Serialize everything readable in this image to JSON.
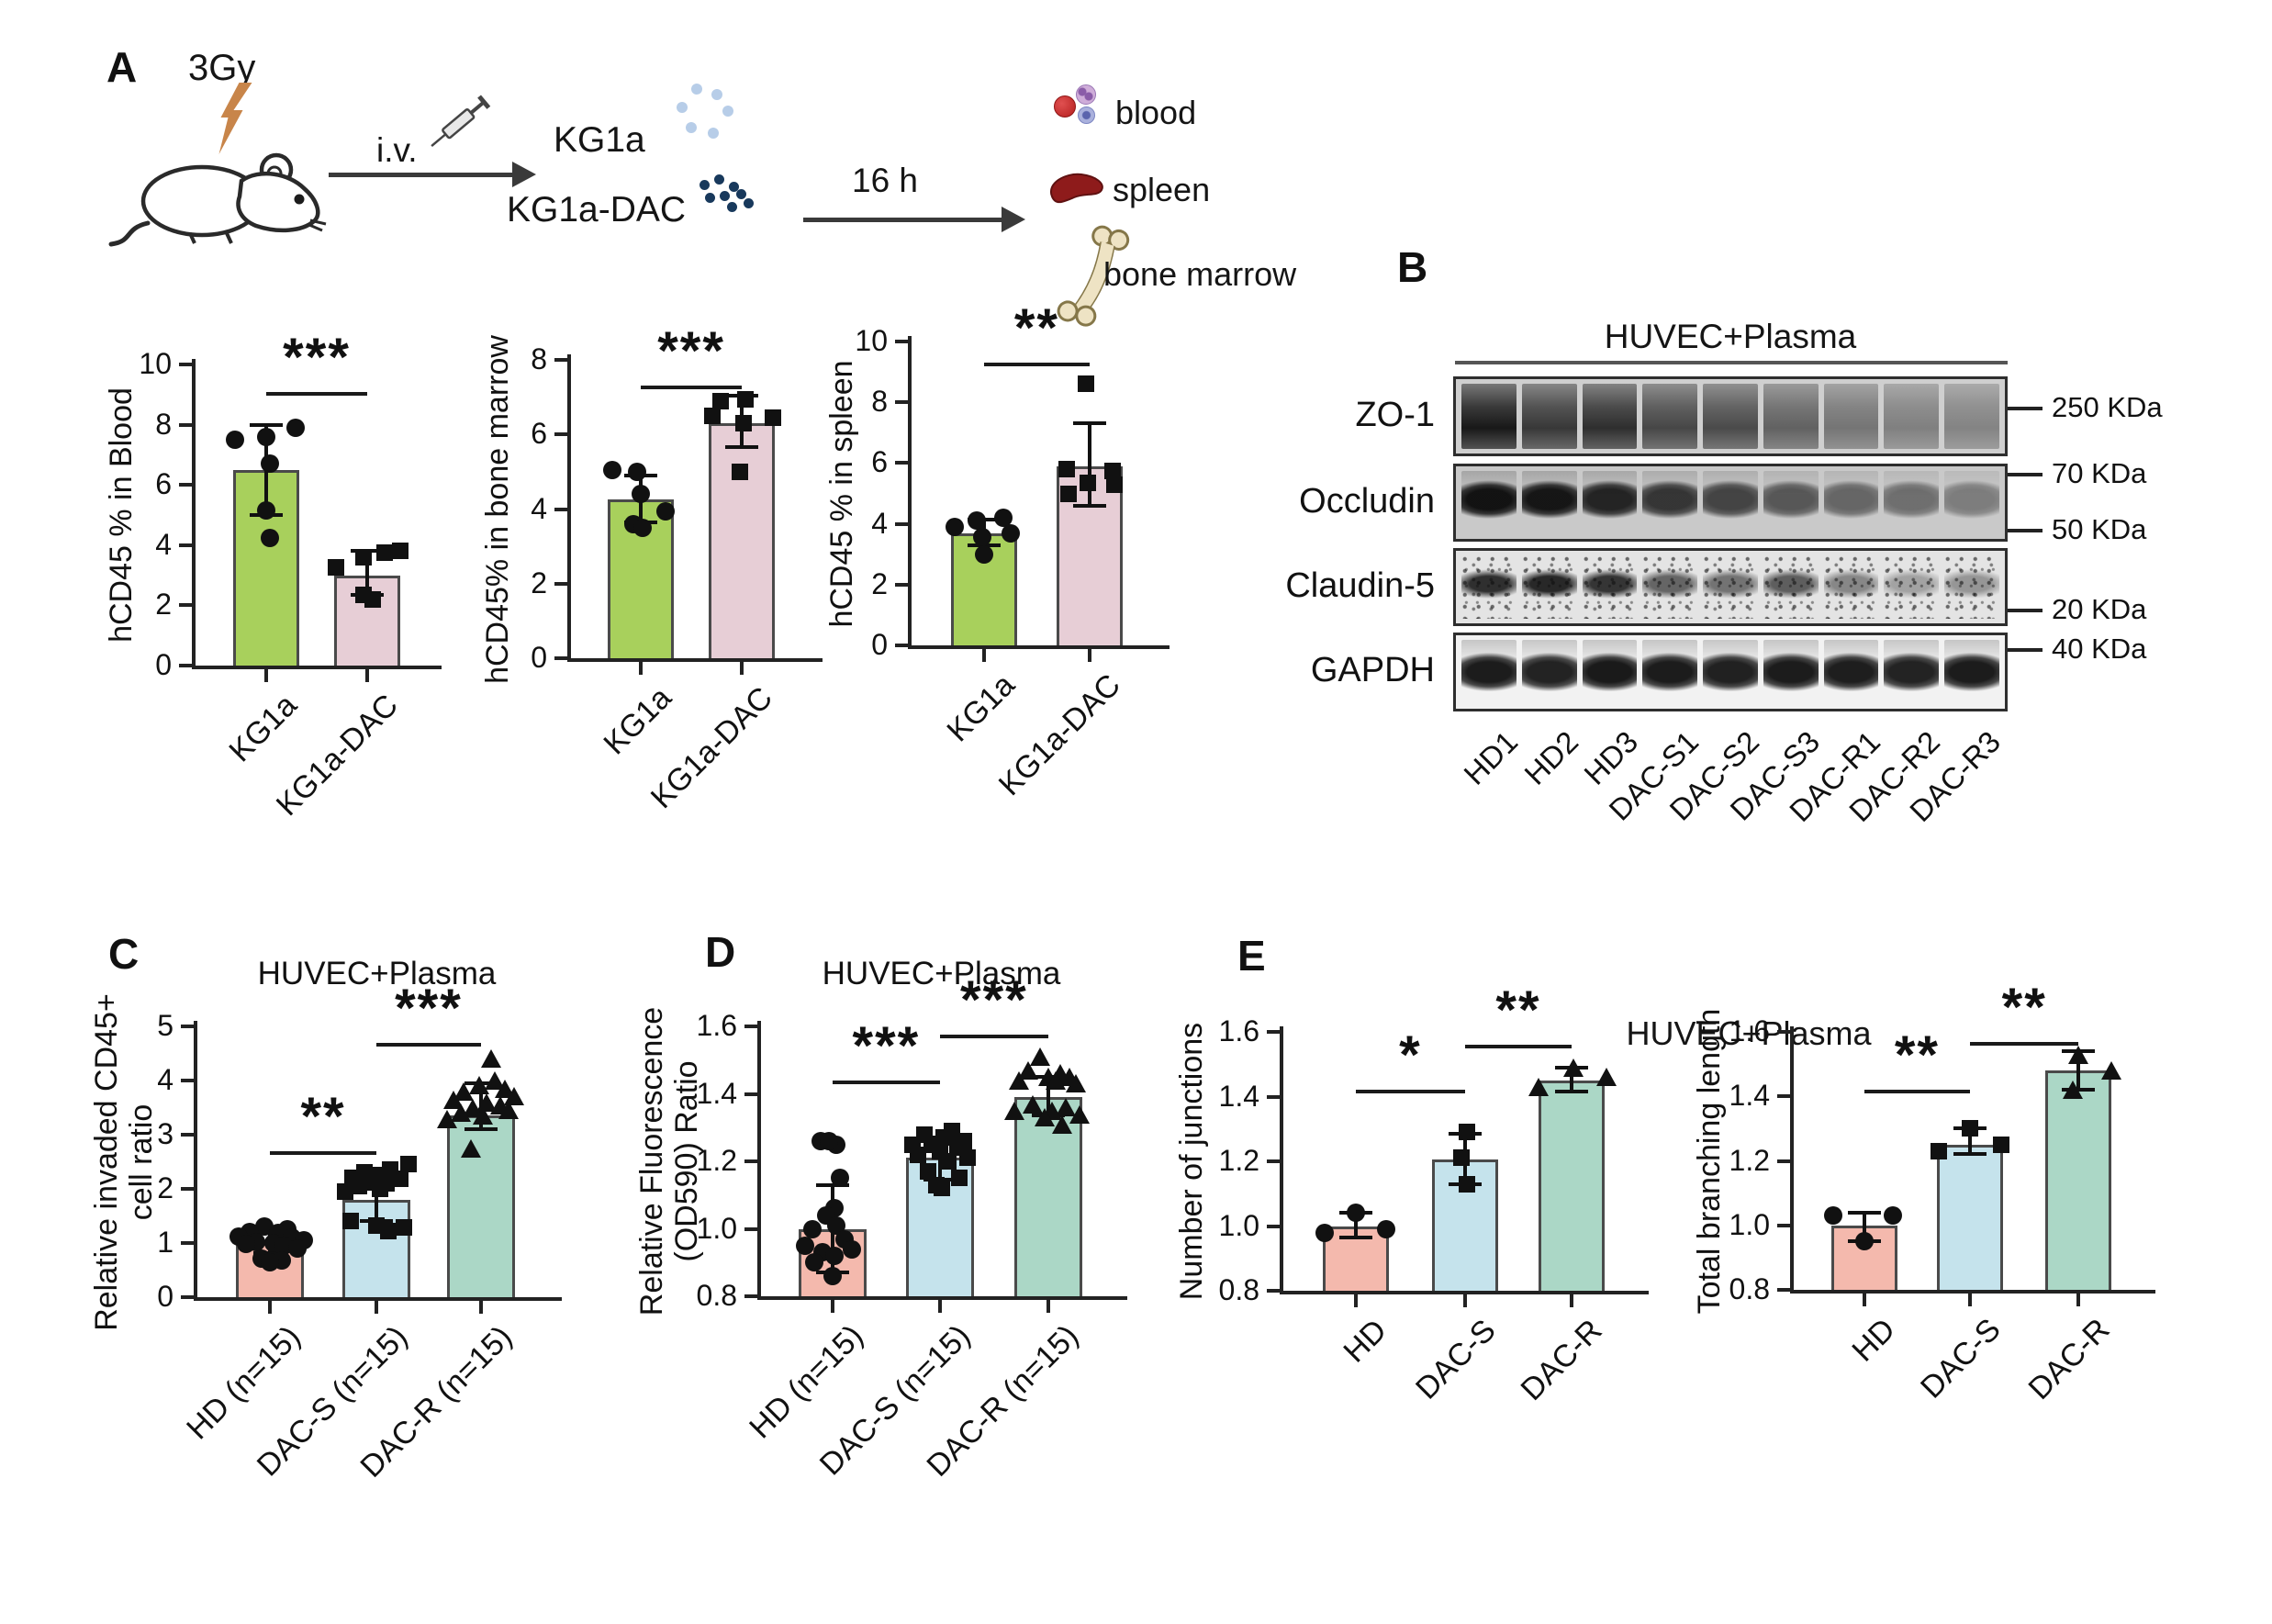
{
  "panels": {
    "A": {
      "label": "A",
      "schematic": {
        "dose": "3Gy",
        "route": "i.v.",
        "cells_top": "KG1a",
        "cells_bottom": "KG1a-DAC",
        "time": "16 h",
        "tissue_blood": "blood",
        "tissue_spleen": "spleen",
        "tissue_bone": "bone marrow"
      }
    },
    "B": {
      "label": "B",
      "title": "HUVEC+Plasma",
      "lanes": [
        "HD1",
        "HD2",
        "HD3",
        "DAC-S1",
        "DAC-S2",
        "DAC-S3",
        "DAC-R1",
        "DAC-R2",
        "DAC-R3"
      ],
      "rows": [
        {
          "protein": "ZO-1",
          "style": "smear",
          "bg": "#cfcfcf",
          "band_pos": 0.55,
          "intensities": [
            0.97,
            0.8,
            0.85,
            0.72,
            0.7,
            0.58,
            0.48,
            0.42,
            0.4
          ],
          "markers": [
            {
              "label": "250 KDa",
              "pos": 0.4
            }
          ]
        },
        {
          "protein": "Occludin",
          "style": "band",
          "bg": "#c9c9c9",
          "band_pos": 0.45,
          "intensities": [
            0.97,
            0.95,
            0.88,
            0.78,
            0.7,
            0.6,
            0.52,
            0.48,
            0.4
          ],
          "markers": [
            {
              "label": "70 KDa",
              "pos": 0.14
            },
            {
              "label": "50 KDa",
              "pos": 0.86
            }
          ]
        },
        {
          "protein": "Claudin-5",
          "style": "speckle",
          "bg": "#e4e4e4",
          "band_pos": 0.45,
          "intensities": [
            0.88,
            0.92,
            0.85,
            0.62,
            0.55,
            0.65,
            0.45,
            0.32,
            0.38
          ],
          "markers": [
            {
              "label": "20 KDa",
              "pos": 0.8
            }
          ]
        },
        {
          "protein": "GAPDH",
          "style": "band",
          "bg": "#f2f2f2",
          "band_pos": 0.5,
          "intensities": [
            0.93,
            0.9,
            0.94,
            0.93,
            0.91,
            0.93,
            0.92,
            0.9,
            0.93
          ],
          "markers": [
            {
              "label": "40 KDa",
              "pos": 0.22
            }
          ]
        }
      ]
    },
    "C": {
      "label": "C"
    },
    "D": {
      "label": "D"
    },
    "E": {
      "label": "E",
      "title": "HUVEC+Plasma"
    }
  },
  "chart_data": [
    {
      "id": "hcd45-blood",
      "type": "bar",
      "panel": "A",
      "title": "",
      "ylabel": [
        "hCD45 % in Blood"
      ],
      "ylim": [
        0,
        10
      ],
      "yticks": [
        "0",
        "2",
        "4",
        "6",
        "8",
        "10"
      ],
      "categories": [
        "KG1a",
        "KG1a-DAC"
      ],
      "values": [
        6.5,
        3.0
      ],
      "errors": [
        [
          5.0,
          8.0
        ],
        [
          2.35,
          3.8
        ]
      ],
      "colors": [
        "#a8d05c",
        "#e7ced6"
      ],
      "markers": [
        "circle",
        "square"
      ],
      "points": [
        [
          7.5,
          7.6,
          7.9,
          6.7,
          5.15,
          4.25
        ],
        [
          3.25,
          3.6,
          3.75,
          3.8,
          2.35,
          2.2
        ]
      ],
      "point_dx": [
        [
          -0.8,
          0.0,
          0.75,
          0.1,
          0.0,
          0.1
        ],
        [
          -0.8,
          -0.1,
          0.45,
          0.85,
          -0.1,
          0.15
        ]
      ],
      "significance": [
        {
          "from": 0,
          "to": 1,
          "label": "***",
          "y": 9.1
        }
      ]
    },
    {
      "id": "hcd45-bone-marrow",
      "type": "bar",
      "panel": "A",
      "title": "",
      "ylabel": [
        "hCD45% in bone marrow"
      ],
      "ylim": [
        0,
        8
      ],
      "yticks": [
        "0",
        "2",
        "4",
        "6",
        "8"
      ],
      "categories": [
        "KG1a",
        "KG1a-DAC"
      ],
      "values": [
        4.25,
        6.3
      ],
      "errors": [
        [
          3.65,
          4.9
        ],
        [
          5.65,
          7.05
        ]
      ],
      "colors": [
        "#a8d05c",
        "#e7ced6"
      ],
      "markers": [
        "circle",
        "square"
      ],
      "points": [
        [
          5.05,
          5.0,
          4.4,
          3.95,
          3.6,
          3.5
        ],
        [
          6.9,
          6.95,
          6.5,
          6.45,
          6.3,
          5.0
        ]
      ],
      "point_dx": [
        [
          -0.75,
          -0.1,
          0.0,
          0.65,
          -0.2,
          0.05
        ],
        [
          -0.55,
          0.1,
          -0.75,
          0.8,
          0.05,
          -0.05
        ]
      ],
      "significance": [
        {
          "from": 0,
          "to": 1,
          "label": "***",
          "y": 7.3
        }
      ]
    },
    {
      "id": "hcd45-spleen",
      "type": "bar",
      "panel": "A",
      "title": "",
      "ylabel": [
        "hCD45 % in spleen"
      ],
      "ylim": [
        0,
        10
      ],
      "yticks": [
        "0",
        "2",
        "4",
        "6",
        "8",
        "10"
      ],
      "categories": [
        "KG1a",
        "KG1a-DAC"
      ],
      "values": [
        3.7,
        5.9
      ],
      "errors": [
        [
          3.3,
          4.15
        ],
        [
          4.6,
          7.3
        ]
      ],
      "colors": [
        "#a8d05c",
        "#e7ced6"
      ],
      "markers": [
        "circle",
        "square"
      ],
      "points": [
        [
          3.9,
          4.1,
          4.2,
          3.7,
          3.55,
          3.0
        ],
        [
          8.6,
          5.8,
          5.35,
          5.75,
          5.3,
          5.0
        ]
      ],
      "point_dx": [
        [
          -0.75,
          -0.2,
          0.5,
          0.7,
          -0.05,
          0.0
        ],
        [
          -0.1,
          -0.6,
          -0.05,
          0.6,
          0.65,
          -0.55
        ]
      ],
      "significance": [
        {
          "from": 0,
          "to": 1,
          "label": "**",
          "y": 9.3
        }
      ]
    },
    {
      "id": "invaded-cd45",
      "type": "bar",
      "panel": "C",
      "title": "HUVEC+Plasma",
      "ylabel": [
        "Relative invaded CD45+",
        "cell ratio"
      ],
      "ylim": [
        0,
        5
      ],
      "yticks": [
        "0",
        "1",
        "2",
        "3",
        "4",
        "5"
      ],
      "categories": [
        "HD (n=15)",
        "DAC-S (n=15)",
        "DAC-R (n=15)"
      ],
      "values": [
        1.0,
        1.8,
        3.35
      ],
      "errors": [
        [
          0.82,
          1.18
        ],
        [
          1.4,
          2.05
        ],
        [
          3.1,
          3.95
        ]
      ],
      "colors": [
        "#f4b9ad",
        "#c5e3ec",
        "#abd7c6"
      ],
      "markers": [
        "circle",
        "square",
        "triangle"
      ],
      "points": [
        [
          1.3,
          1.25,
          1.2,
          1.18,
          1.12,
          1.1,
          1.05,
          1.02,
          1.0,
          0.98,
          0.95,
          0.9,
          0.72,
          0.68,
          0.65
        ],
        [
          2.45,
          2.35,
          2.3,
          2.25,
          2.2,
          2.18,
          2.12,
          2.1,
          2.05,
          2.0,
          1.95,
          1.4,
          1.32,
          1.28,
          1.22
        ],
        [
          4.4,
          4.0,
          3.92,
          3.85,
          3.8,
          3.72,
          3.65,
          3.6,
          3.55,
          3.5,
          3.45,
          3.4,
          3.35,
          3.28,
          2.75
        ]
      ],
      "point_dx": [
        [
          -0.15,
          0.45,
          -0.5,
          0.2,
          -0.8,
          0.55,
          0.85,
          -0.35,
          0.1,
          -0.6,
          0.35,
          0.7,
          -0.2,
          0.3,
          0.0
        ],
        [
          0.8,
          0.35,
          -0.3,
          0.05,
          -0.6,
          0.6,
          -0.1,
          0.25,
          -0.45,
          0.1,
          -0.8,
          -0.65,
          0.0,
          0.7,
          0.3
        ],
        [
          0.25,
          0.35,
          -0.05,
          0.6,
          -0.45,
          0.85,
          -0.7,
          0.15,
          0.5,
          -0.2,
          0.7,
          -0.5,
          0.05,
          -0.85,
          -0.25
        ]
      ],
      "significance": [
        {
          "from": 0,
          "to": 1,
          "label": "**",
          "y": 2.7
        },
        {
          "from": 1,
          "to": 2,
          "label": "***",
          "y": 4.7
        }
      ]
    },
    {
      "id": "fluorescence-od590",
      "type": "bar",
      "panel": "D",
      "title": "HUVEC+Plasma",
      "ylabel": [
        "Relative Fluorescence",
        "(OD590) Ratio"
      ],
      "ylim": [
        0.8,
        1.6
      ],
      "yticks": [
        "0.8",
        "1.0",
        "1.2",
        "1.4",
        "1.6"
      ],
      "categories": [
        "HD (n=15)",
        "DAC-S (n=15)",
        "DAC-R (n=15)"
      ],
      "values": [
        1.0,
        1.21,
        1.39
      ],
      "errors": [
        [
          0.87,
          1.13
        ],
        [
          1.145,
          1.27
        ],
        [
          1.335,
          1.45
        ]
      ],
      "colors": [
        "#f4b9ad",
        "#c5e3ec",
        "#abd7c6"
      ],
      "markers": [
        "circle",
        "square",
        "triangle"
      ],
      "points": [
        [
          1.26,
          1.25,
          1.26,
          1.15,
          1.06,
          1.04,
          1.01,
          1.0,
          0.97,
          0.95,
          0.94,
          0.93,
          0.92,
          0.9,
          0.86
        ],
        [
          1.29,
          1.28,
          1.27,
          1.26,
          1.25,
          1.25,
          1.24,
          1.23,
          1.22,
          1.21,
          1.2,
          1.17,
          1.15,
          1.13,
          1.12
        ],
        [
          1.51,
          1.47,
          1.46,
          1.45,
          1.45,
          1.44,
          1.44,
          1.43,
          1.37,
          1.36,
          1.35,
          1.35,
          1.34,
          1.33,
          1.31
        ]
      ],
      "point_dx": [
        [
          -0.3,
          0.1,
          -0.1,
          0.2,
          0.05,
          -0.15,
          0.1,
          -0.5,
          0.3,
          -0.7,
          0.5,
          -0.25,
          0.05,
          -0.45,
          0.0
        ],
        [
          0.3,
          -0.4,
          0.1,
          0.6,
          -0.2,
          -0.7,
          0.45,
          0.0,
          -0.55,
          0.7,
          0.2,
          -0.3,
          0.5,
          -0.1,
          0.05
        ],
        [
          -0.2,
          -0.5,
          0.3,
          0.0,
          0.55,
          -0.75,
          0.2,
          0.7,
          -0.4,
          0.45,
          -0.85,
          0.1,
          0.8,
          -0.1,
          0.35
        ]
      ],
      "significance": [
        {
          "from": 0,
          "to": 1,
          "label": "***",
          "y": 1.44
        },
        {
          "from": 1,
          "to": 2,
          "label": "***",
          "y": 1.575
        }
      ]
    },
    {
      "id": "number-of-junctions",
      "type": "bar",
      "panel": "E",
      "title": "",
      "ylabel": [
        "Number of junctions"
      ],
      "ylim": [
        0.8,
        1.6
      ],
      "yticks": [
        "0.8",
        "1.0",
        "1.2",
        "1.4",
        "1.6"
      ],
      "categories": [
        "HD",
        "DAC-S",
        "DAC-R"
      ],
      "values": [
        1.0,
        1.205,
        1.45
      ],
      "errors": [
        [
          0.965,
          1.04
        ],
        [
          1.13,
          1.285
        ],
        [
          1.415,
          1.49
        ]
      ],
      "colors": [
        "#f4b9ad",
        "#c5e3ec",
        "#abd7c6"
      ],
      "markers": [
        "circle",
        "square",
        "triangle"
      ],
      "points": [
        [
          0.98,
          1.04,
          0.99
        ],
        [
          1.29,
          1.21,
          1.13
        ],
        [
          1.43,
          1.49,
          1.46
        ]
      ],
      "point_dx": [
        [
          -0.8,
          0.0,
          0.8
        ],
        [
          0.05,
          -0.1,
          0.05
        ],
        [
          -0.85,
          0.05,
          0.9
        ]
      ],
      "significance": [
        {
          "from": 0,
          "to": 1,
          "label": "*",
          "y": 1.42
        },
        {
          "from": 1,
          "to": 2,
          "label": "**",
          "y": 1.56
        }
      ]
    },
    {
      "id": "total-branching-length",
      "type": "bar",
      "panel": "E",
      "title": "",
      "ylabel": [
        "Total branching length"
      ],
      "ylim": [
        0.8,
        1.6
      ],
      "yticks": [
        "0.8",
        "1.0",
        "1.2",
        "1.4",
        "1.6"
      ],
      "categories": [
        "HD",
        "DAC-S",
        "DAC-R"
      ],
      "values": [
        1.0,
        1.25,
        1.48
      ],
      "errors": [
        [
          0.95,
          1.04
        ],
        [
          1.22,
          1.3
        ],
        [
          1.42,
          1.54
        ]
      ],
      "colors": [
        "#f4b9ad",
        "#c5e3ec",
        "#abd7c6"
      ],
      "markers": [
        "circle",
        "square",
        "triangle"
      ],
      "points": [
        [
          1.03,
          1.03,
          0.95
        ],
        [
          1.23,
          1.3,
          1.25
        ],
        [
          1.42,
          1.53,
          1.48
        ]
      ],
      "point_dx": [
        [
          -0.8,
          0.75,
          0.0
        ],
        [
          -0.8,
          0.0,
          0.8
        ],
        [
          -0.15,
          0.0,
          0.85
        ]
      ],
      "significance": [
        {
          "from": 0,
          "to": 1,
          "label": "**",
          "y": 1.42
        },
        {
          "from": 1,
          "to": 2,
          "label": "**",
          "y": 1.57
        }
      ]
    }
  ]
}
